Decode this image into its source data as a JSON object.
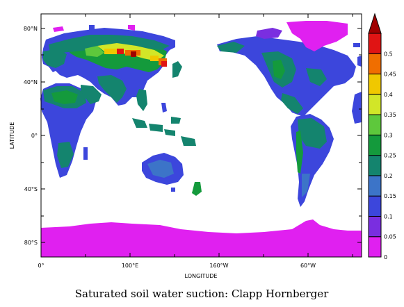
{
  "map": {
    "xlabel": "LONGITUDE",
    "ylabel": "LATITUDE",
    "x_ticks": [
      "0°",
      "100°E",
      "160°W",
      "60°W"
    ],
    "y_ticks": [
      "80°N",
      "40°N",
      "0°",
      "40°S",
      "80°S"
    ],
    "caption": "Saturated soil water suction: Clapp Hornberger"
  },
  "colorbar": {
    "labels": [
      "0",
      "0.05",
      "0.1",
      "0.15",
      "0.2",
      "0.25",
      "0.3",
      "0.35",
      "0.4",
      "0.45",
      "0.5"
    ],
    "colors": [
      "#e020f0",
      "#7a2ee0",
      "#3c46dc",
      "#3c74c8",
      "#14846e",
      "#149a3c",
      "#5ec83c",
      "#d2e628",
      "#f0c800",
      "#f06e00",
      "#e01414",
      "#a00000"
    ]
  }
}
